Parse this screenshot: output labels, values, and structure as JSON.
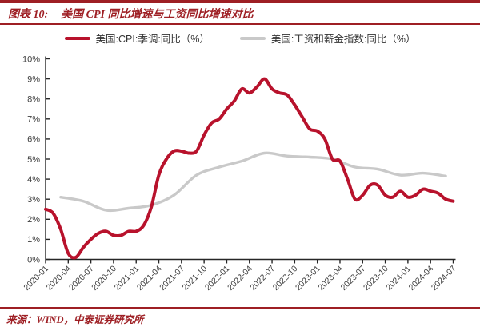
{
  "header": {
    "tag": "图表 10:",
    "title": "美国 CPI 同比增速与工资同比增速对比"
  },
  "footer": {
    "source": "来源：WIND，中泰证券研究所"
  },
  "colors": {
    "accent_red": "#9e1f24",
    "cpi_line_red": "#b8122c",
    "wage_line_gray": "#c9c9c9",
    "axis_line": "#262626",
    "axis_text": "#3f3f3f"
  },
  "chart_data": {
    "type": "line",
    "title": "美国 CPI 同比增速与工资同比增速对比",
    "xlabel": "",
    "ylabel": "",
    "ylim": [
      0,
      10
    ],
    "grid": false,
    "legend_position": "top",
    "n_months": 55,
    "x_start": "2020-01",
    "x_end": "2024-07",
    "x_tick_month_step": 3,
    "x_tick_labels": [
      "2020-01",
      "2020-04",
      "2020-07",
      "2020-10",
      "2021-01",
      "2021-04",
      "2021-07",
      "2021-10",
      "2022-01",
      "2022-04",
      "2022-07",
      "2022-10",
      "2023-01",
      "2023-04",
      "2023-07",
      "2023-10",
      "2024-01",
      "2024-04",
      "2024-07"
    ],
    "y_tick_labels": [
      "0%",
      "1%",
      "2%",
      "3%",
      "4%",
      "5%",
      "6%",
      "7%",
      "8%",
      "9%",
      "10%"
    ],
    "series": [
      {
        "name": "美国:CPI:季调:同比（%）",
        "color": "#b8122c",
        "stroke_width": 4,
        "start_month": 0,
        "month_step": 1,
        "values": [
          2.5,
          2.3,
          1.5,
          0.3,
          0.1,
          0.6,
          1.0,
          1.3,
          1.4,
          1.2,
          1.2,
          1.4,
          1.4,
          1.7,
          2.6,
          4.2,
          5.0,
          5.4,
          5.4,
          5.3,
          5.4,
          6.2,
          6.8,
          7.0,
          7.5,
          7.9,
          8.5,
          8.3,
          8.6,
          9.0,
          8.5,
          8.3,
          8.2,
          7.7,
          7.1,
          6.5,
          6.4,
          6.0,
          5.0,
          4.9,
          4.0,
          3.0,
          3.2,
          3.7,
          3.7,
          3.2,
          3.1,
          3.4,
          3.1,
          3.2,
          3.5,
          3.4,
          3.3,
          3.0,
          2.9
        ]
      },
      {
        "name": "美国:工资和薪金指数:同比（%）",
        "color": "#c9c9c9",
        "stroke_width": 3.4,
        "start_month": 2,
        "month_step": 3,
        "values": [
          3.1,
          2.9,
          2.45,
          2.55,
          2.7,
          3.2,
          4.2,
          4.6,
          4.9,
          5.3,
          5.15,
          5.1,
          5.0,
          4.6,
          4.5,
          4.2,
          4.3,
          4.15
        ]
      }
    ]
  }
}
